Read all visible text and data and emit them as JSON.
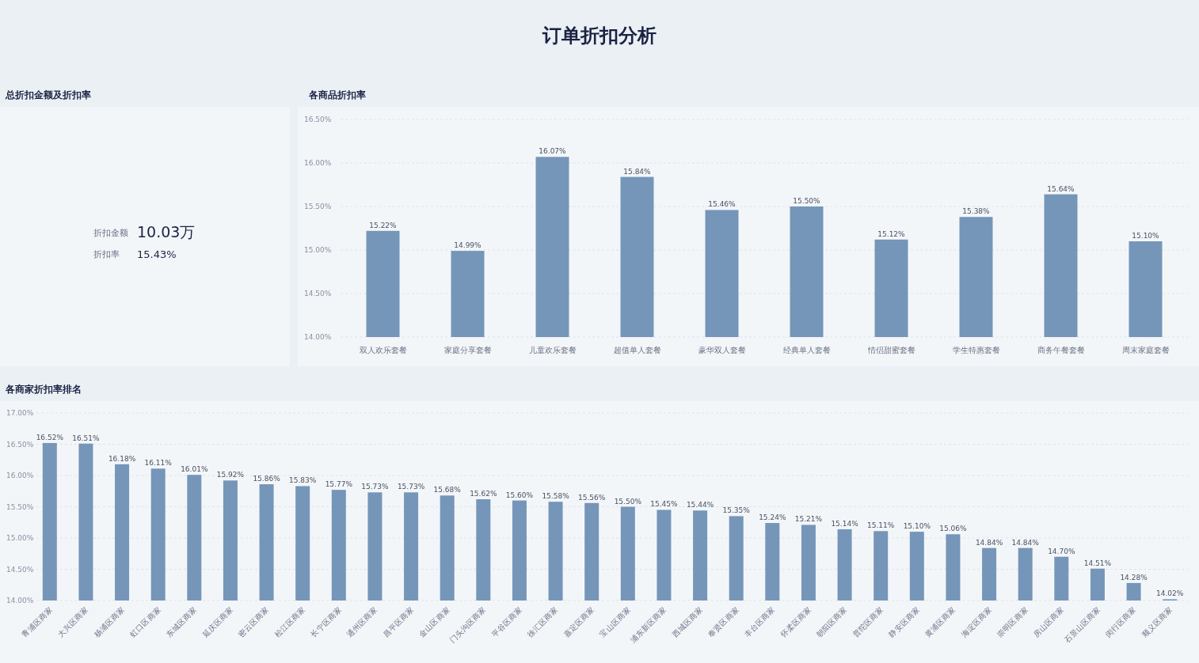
{
  "chart_data": [
    {
      "type": "other",
      "title": "总折扣金额及折扣率",
      "annotations": [
        "订单折扣分析",
        "折扣金额",
        "10.03万",
        "折扣率",
        "15.43%"
      ]
    },
    {
      "type": "bar",
      "title": "各商品折扣率",
      "categories": [
        "双人欢乐套餐",
        "家庭分享套餐",
        "儿童欢乐套餐",
        "超值单人套餐",
        "豪华双人套餐",
        "经典单人套餐",
        "情侣甜蜜套餐",
        "学生特惠套餐",
        "商务午餐套餐",
        "周末家庭套餐"
      ],
      "values": [
        15.22,
        14.99,
        16.07,
        15.84,
        15.46,
        15.5,
        15.12,
        15.38,
        15.64,
        15.1
      ],
      "value_labels": [
        "15.22%",
        "14.99%",
        "16.07%",
        "15.84%",
        "15.46%",
        "15.50%",
        "15.12%",
        "15.38%",
        "15.64%",
        "15.10%"
      ],
      "color": "#7596b9",
      "ylim": [
        14,
        16.5
      ],
      "yticks": [
        {
          "value": 14,
          "label": "14.00%"
        },
        {
          "value": 14.5,
          "label": "14.50%"
        },
        {
          "value": 15,
          "label": "15.00%"
        },
        {
          "value": 15.5,
          "label": "15.50%"
        },
        {
          "value": 16,
          "label": "16.00%"
        },
        {
          "value": 16.5,
          "label": "16.50%"
        }
      ],
      "grid": "y"
    },
    {
      "type": "bar",
      "title": "各商家折扣率排名",
      "categories": [
        "青浦区商家",
        "大兴区商家",
        "杨浦区商家",
        "虹口区商家",
        "东城区商家",
        "延庆区商家",
        "密云区商家",
        "松江区商家",
        "长宁区商家",
        "通州区商家",
        "昌平区商家",
        "金山区商家",
        "门头沟区商家",
        "平谷区商家",
        "徐汇区商家",
        "嘉定区商家",
        "宝山区商家",
        "浦东新区商家",
        "西城区商家",
        "奉贤区商家",
        "丰台区商家",
        "怀柔区商家",
        "朝阳区商家",
        "普陀区商家",
        "静安区商家",
        "黄浦区商家",
        "海淀区商家",
        "崇明区商家",
        "房山区商家",
        "石景山区商家",
        "闵行区商家",
        "顺义区商家"
      ],
      "values": [
        16.52,
        16.51,
        16.18,
        16.11,
        16.01,
        15.92,
        15.86,
        15.83,
        15.77,
        15.73,
        15.73,
        15.68,
        15.62,
        15.6,
        15.58,
        15.56,
        15.5,
        15.45,
        15.44,
        15.35,
        15.24,
        15.21,
        15.14,
        15.11,
        15.1,
        15.06,
        14.84,
        14.84,
        14.7,
        14.51,
        14.28,
        14.02
      ],
      "value_labels": [
        "16.52%",
        "16.51%",
        "16.18%",
        "16.11%",
        "16.01%",
        "15.92%",
        "15.86%",
        "15.83%",
        "15.77%",
        "15.73%",
        "15.73%",
        "15.68%",
        "15.62%",
        "15.60%",
        "15.58%",
        "15.56%",
        "15.50%",
        "15.45%",
        "15.44%",
        "15.35%",
        "15.24%",
        "15.21%",
        "15.14%",
        "15.11%",
        "15.10%",
        "15.06%",
        "14.84%",
        "14.84%",
        "14.70%",
        "14.51%",
        "14.28%",
        "14.02%"
      ],
      "color": "#7596b9",
      "ylim": [
        14,
        17
      ],
      "yticks": [
        {
          "value": 14,
          "label": "14.00%"
        },
        {
          "value": 14.5,
          "label": "14.50%"
        },
        {
          "value": 15,
          "label": "15.00%"
        },
        {
          "value": 15.5,
          "label": "15.50%"
        },
        {
          "value": 16,
          "label": "16.00%"
        },
        {
          "value": 16.5,
          "label": "16.50%"
        },
        {
          "value": 17,
          "label": "17.00%"
        }
      ],
      "grid": "y"
    }
  ]
}
